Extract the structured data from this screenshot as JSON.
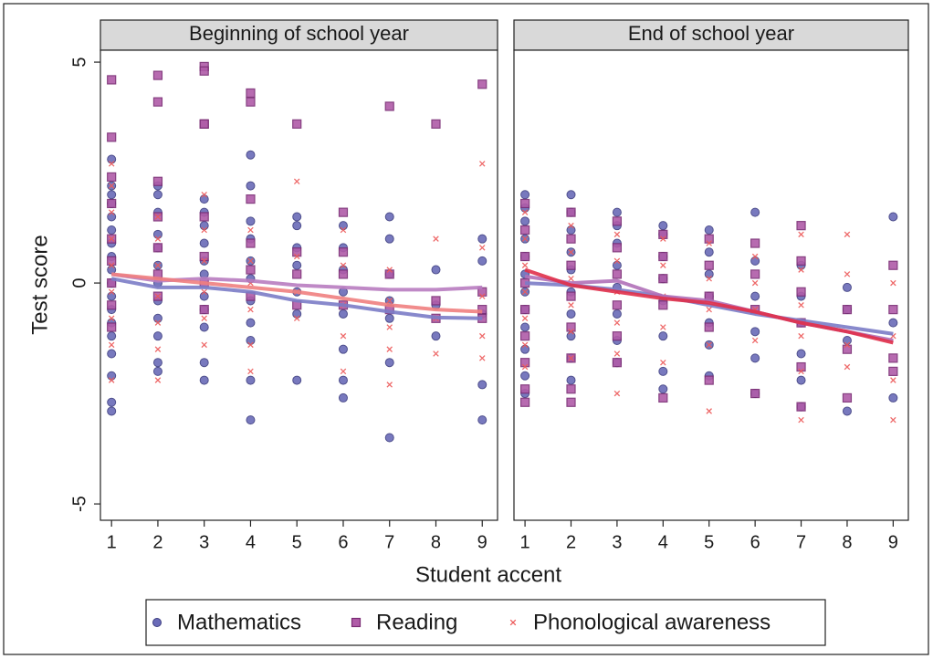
{
  "chart_data": {
    "type": "scatter",
    "ylabel": "Test score",
    "xlabel": "Student accent",
    "xlim": [
      0.76,
      9.33
    ],
    "ylim": [
      -5.37,
      5.27
    ],
    "xticks": [
      1,
      2,
      3,
      4,
      5,
      6,
      7,
      8,
      9
    ],
    "yticks": [
      -5,
      0,
      5
    ],
    "series": [
      {
        "name": "Mathematics",
        "color": "#6a6bb8",
        "marker": "circle"
      },
      {
        "name": "Reading",
        "color": "#b05ca8",
        "marker": "square"
      },
      {
        "name": "Phonological awareness",
        "color": "#ec5a5a",
        "marker": "x"
      }
    ],
    "panels": [
      {
        "title": "Beginning of school year",
        "series": [
          {
            "trend_color": "#7b7cc6",
            "x": [
              1,
              1,
              1,
              1,
              1,
              1,
              1,
              1,
              1,
              1,
              1,
              1,
              1,
              1,
              1,
              1,
              1,
              1,
              2,
              2,
              2,
              2,
              2,
              2,
              2,
              2,
              2,
              2,
              2,
              2,
              3,
              3,
              3,
              3,
              3,
              3,
              3,
              3,
              3,
              3,
              3,
              4,
              4,
              4,
              4,
              4,
              4,
              4,
              4,
              4,
              4,
              4,
              5,
              5,
              5,
              5,
              5,
              5,
              5,
              6,
              6,
              6,
              6,
              6,
              6,
              6,
              6,
              7,
              7,
              7,
              7,
              7,
              7,
              7,
              8,
              8,
              8,
              9,
              9,
              9,
              9,
              9
            ],
            "values": [
              2.8,
              2.2,
              2.0,
              1.8,
              1.5,
              1.2,
              0.9,
              0.6,
              0.3,
              0,
              -0.3,
              -0.6,
              -0.9,
              -1.2,
              -1.6,
              -2.1,
              -2.7,
              -2.9,
              2.2,
              2.0,
              1.6,
              1.1,
              0.8,
              0.4,
              0,
              -0.4,
              -0.8,
              -1.2,
              -1.8,
              -2.0,
              1.9,
              1.6,
              1.3,
              0.9,
              0.5,
              0.2,
              -0.3,
              -0.6,
              -1.0,
              -1.8,
              -2.2,
              2.9,
              2.2,
              1.4,
              1.0,
              0.5,
              0.1,
              -0.4,
              -0.9,
              -1.3,
              -2.2,
              -3.1,
              1.5,
              1.3,
              0.8,
              0.4,
              -0.2,
              -0.7,
              -2.2,
              1.3,
              0.8,
              0.3,
              -0.2,
              -0.7,
              -1.5,
              -2.2,
              -2.6,
              1.5,
              1.0,
              0.2,
              -0.4,
              -0.8,
              -1.8,
              -3.5,
              0.3,
              -0.5,
              -1.2,
              1.0,
              0.5,
              -0.7,
              -2.3,
              -3.1
            ],
            "trend_x": [
              1,
              2,
              3,
              4,
              5,
              6,
              7,
              8,
              9
            ],
            "trend": [
              0.1,
              -0.1,
              -0.1,
              -0.2,
              -0.4,
              -0.5,
              -0.65,
              -0.78,
              -0.8
            ]
          },
          {
            "trend_color": "#b87cc0",
            "x": [
              1,
              1,
              1,
              1,
              1,
              1,
              1,
              1,
              1,
              2,
              2,
              2,
              2,
              2,
              2,
              2,
              3,
              3,
              3,
              3,
              3,
              3,
              3,
              3,
              4,
              4,
              4,
              4,
              4,
              4,
              5,
              5,
              5,
              5,
              6,
              6,
              6,
              6,
              7,
              7,
              7,
              8,
              8,
              8,
              9,
              9,
              9,
              9
            ],
            "values": [
              4.6,
              3.3,
              2.4,
              1.8,
              1.0,
              0.5,
              0,
              -0.5,
              -1.0,
              4.7,
              4.1,
              2.3,
              1.5,
              0.8,
              0.2,
              -0.3,
              4.9,
              4.8,
              3.6,
              3.6,
              1.5,
              0.6,
              0,
              -0.6,
              4.3,
              4.1,
              1.9,
              0.9,
              0.3,
              -0.3,
              3.6,
              0.7,
              0.2,
              -0.5,
              1.6,
              0.7,
              0.2,
              -0.5,
              4.0,
              0.2,
              -0.6,
              3.6,
              -0.4,
              -0.8,
              4.5,
              -0.2,
              -0.6,
              -0.8
            ],
            "trend_x": [
              1,
              2,
              3,
              4,
              5,
              6,
              7,
              8,
              9
            ],
            "trend": [
              0.2,
              0.05,
              0.1,
              0.05,
              -0.05,
              -0.1,
              -0.15,
              -0.15,
              -0.1
            ]
          },
          {
            "trend_color": "#f08080",
            "x": [
              1,
              1,
              1,
              1,
              1,
              1,
              1,
              1,
              1,
              2,
              2,
              2,
              2,
              2,
              2,
              2,
              3,
              3,
              3,
              3,
              3,
              3,
              4,
              4,
              4,
              4,
              4,
              4,
              5,
              5,
              5,
              5,
              6,
              6,
              6,
              6,
              6,
              7,
              7,
              7,
              7,
              7,
              8,
              8,
              8,
              9,
              9,
              9,
              9,
              9
            ],
            "values": [
              2.7,
              2.2,
              1.6,
              1.0,
              0.4,
              -0.2,
              -0.8,
              -1.4,
              -2.2,
              1.5,
              1.0,
              0.4,
              -0.3,
              -0.9,
              -1.5,
              -2.2,
              2.0,
              1.2,
              0.5,
              -0.2,
              -0.8,
              -1.4,
              1.2,
              0.5,
              0,
              -0.6,
              -1.4,
              -2.0,
              2.3,
              0.6,
              -0.2,
              -0.8,
              1.2,
              0.4,
              -0.5,
              -1.2,
              -2.0,
              0.3,
              -0.4,
              -1.0,
              -1.5,
              -2.3,
              1.0,
              -0.8,
              -1.6,
              2.7,
              0.8,
              -0.3,
              -1.2,
              -1.7
            ],
            "trend_x": [
              1,
              2,
              3,
              4,
              5,
              6,
              7,
              8,
              9
            ],
            "trend": [
              0.2,
              0.1,
              0,
              -0.1,
              -0.2,
              -0.35,
              -0.5,
              -0.6,
              -0.65
            ]
          }
        ]
      },
      {
        "title": "End of school year",
        "series": [
          {
            "trend_color": "#7b7cc6",
            "x": [
              1,
              1,
              1,
              1,
              1,
              1,
              1,
              1,
              1,
              1,
              1,
              1,
              2,
              2,
              2,
              2,
              2,
              2,
              2,
              2,
              2,
              2,
              3,
              3,
              3,
              3,
              3,
              3,
              3,
              3,
              4,
              4,
              4,
              4,
              4,
              4,
              4,
              4,
              5,
              5,
              5,
              5,
              5,
              5,
              5,
              6,
              6,
              6,
              6,
              6,
              6,
              7,
              7,
              7,
              7,
              7,
              7,
              8,
              8,
              8,
              8,
              9,
              9,
              9
            ],
            "values": [
              2.0,
              1.7,
              1.4,
              1.0,
              0.6,
              0.2,
              -0.2,
              -0.6,
              -1.0,
              -1.5,
              -2.1,
              -2.5,
              2.0,
              1.6,
              1.2,
              0.7,
              0.3,
              -0.2,
              -0.7,
              -1.2,
              -1.7,
              -2.2,
              1.6,
              1.3,
              0.9,
              0.4,
              -0.1,
              -0.7,
              -1.3,
              -1.8,
              1.3,
              1.1,
              0.6,
              0.1,
              -0.4,
              -1.2,
              -2.0,
              -2.4,
              1.2,
              0.7,
              0.2,
              -0.3,
              -0.9,
              -1.4,
              -2.1,
              1.6,
              0.5,
              -0.3,
              -1.1,
              -1.7,
              -2.5,
              0.4,
              -0.3,
              -0.9,
              -1.6,
              -2.2,
              -2.8,
              -0.1,
              -0.6,
              -1.3,
              -2.9,
              1.5,
              -0.9,
              -2.6
            ],
            "trend_x": [
              1,
              2,
              3,
              4,
              5,
              6,
              7,
              8,
              9
            ],
            "trend": [
              0,
              -0.05,
              -0.15,
              -0.3,
              -0.5,
              -0.7,
              -0.85,
              -1.0,
              -1.15
            ]
          },
          {
            "trend_color": "#b070b8",
            "x": [
              1,
              1,
              1,
              1,
              1,
              1,
              1,
              1,
              1,
              2,
              2,
              2,
              2,
              2,
              2,
              2,
              2,
              3,
              3,
              3,
              3,
              3,
              3,
              4,
              4,
              4,
              4,
              4,
              5,
              5,
              5,
              5,
              5,
              6,
              6,
              6,
              6,
              7,
              7,
              7,
              7,
              7,
              7,
              8,
              8,
              8,
              9,
              9,
              9,
              9
            ],
            "values": [
              1.8,
              1.2,
              0.6,
              0,
              -0.6,
              -1.2,
              -1.8,
              -2.4,
              -2.7,
              1.6,
              1.0,
              0.4,
              -0.3,
              -1.0,
              -1.7,
              -2.4,
              -2.7,
              1.4,
              0.8,
              0.2,
              -0.5,
              -1.2,
              -1.8,
              1.1,
              0.6,
              0.1,
              -0.5,
              -2.6,
              1.0,
              0.4,
              -0.3,
              -1.0,
              -2.2,
              0.9,
              0.2,
              -0.6,
              -2.5,
              1.3,
              0.5,
              -0.2,
              -0.9,
              -1.9,
              -2.8,
              -0.6,
              -1.5,
              -2.6,
              0.4,
              -0.6,
              -1.7,
              -2.0
            ],
            "trend_x": [
              1,
              2,
              3,
              4,
              5,
              6,
              7,
              8,
              9
            ],
            "trend": [
              0.15,
              0,
              0.05,
              -0.3,
              -0.4,
              -0.65,
              -0.9,
              -1.1,
              -1.3
            ]
          },
          {
            "trend_color": "#e0304a",
            "x": [
              1,
              1,
              1,
              1,
              1,
              1,
              1,
              2,
              2,
              2,
              2,
              2,
              2,
              3,
              3,
              3,
              3,
              3,
              3,
              4,
              4,
              4,
              4,
              4,
              5,
              5,
              5,
              5,
              5,
              6,
              6,
              6,
              6,
              7,
              7,
              7,
              7,
              7,
              7,
              8,
              8,
              8,
              8,
              9,
              9,
              9,
              9
            ],
            "values": [
              1.6,
              1.0,
              0.4,
              -0.2,
              -0.8,
              -1.4,
              -1.9,
              1.3,
              0.7,
              0.1,
              -0.5,
              -1.1,
              -1.7,
              1.1,
              0.5,
              -0.2,
              -0.9,
              -1.6,
              -2.5,
              1.0,
              0.4,
              -0.3,
              -1.0,
              -1.8,
              0.9,
              0.1,
              -0.6,
              -1.4,
              -2.9,
              0.6,
              0,
              -0.6,
              -1.3,
              1.1,
              0.3,
              -0.5,
              -1.2,
              -2.0,
              -3.1,
              1.1,
              0.2,
              -1.4,
              -1.9,
              0,
              -1.2,
              -2.2,
              -3.1
            ],
            "trend_x": [
              1,
              2,
              3,
              4,
              5,
              6,
              7,
              8,
              9
            ],
            "trend": [
              0.3,
              -0.05,
              -0.2,
              -0.35,
              -0.45,
              -0.65,
              -0.9,
              -1.1,
              -1.35
            ]
          }
        ]
      }
    ]
  }
}
